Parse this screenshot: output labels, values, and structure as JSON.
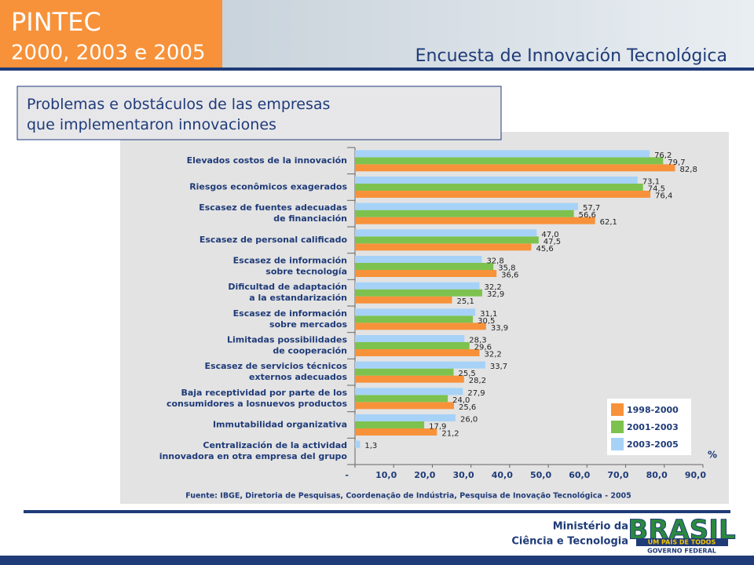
{
  "header": {
    "title": "PINTEC",
    "years": "2000, 2003 e 2005",
    "subtitle": "Encuesta de Innovación Tecnológica"
  },
  "footer": {
    "ministry_line1": "Ministério da",
    "ministry_line2": "Ciência e Tecnologia",
    "logo": "BRASIL",
    "logo_tagline": "UM PAÍS DE TODOS",
    "logo_gov": "GOVERNO FEDERAL"
  },
  "chart_data": {
    "type": "bar",
    "orientation": "horizontal",
    "title": "Problemas e obstáculos de las empresas que implementaron innovaciones",
    "source": "Fuente: IBGE, Diretoria de Pesquisas, Coordenação de Indústria, Pesquisa de Inovação Tecnológica - 2005",
    "unit_label": "%",
    "categories": [
      "Elevados costos de la innovación",
      "Riesgos econômicos exagerados",
      "Escasez de fuentes adecuadas\nde financiación",
      "Escasez de personal calificado",
      "Escasez de información\nsobre tecnología",
      "Dificultad de adaptación\na la estandarización",
      "Escasez de información\nsobre mercados",
      "Limitadas possibilidades\nde cooperación",
      "Escasez de servicios técnicos\nexternos adecuados",
      "Baja receptividad por parte de los\nconsumidores a losnuevos productos",
      "Immutabilidad organizativa",
      "Centralización de la actividad\ninnovadora en otra empresa del grupo"
    ],
    "series": [
      {
        "name": "1998-2000",
        "color": "#f7923a",
        "values": [
          82.8,
          76.4,
          62.1,
          45.6,
          36.6,
          25.1,
          33.9,
          32.2,
          28.2,
          25.6,
          21.2,
          null
        ],
        "value_labels": [
          "82,8",
          "76,4",
          "62,1",
          "45,6",
          "36,6",
          "25,1",
          "33,9",
          "32,2",
          "28,2",
          "25,6",
          "21,2",
          null
        ]
      },
      {
        "name": "2001-2003",
        "color": "#7dc24e",
        "values": [
          79.7,
          74.5,
          56.6,
          47.5,
          35.8,
          32.9,
          30.5,
          29.6,
          25.5,
          24.0,
          17.9,
          null
        ],
        "value_labels": [
          "79,7",
          "74,5",
          "56,6",
          "47,5",
          "35,8",
          "32,9",
          "30,5",
          "29,6",
          "25,5",
          "24,0",
          "17,9",
          null
        ]
      },
      {
        "name": "2003-2005",
        "color": "#a6d2f7",
        "values": [
          76.2,
          73.1,
          57.7,
          47.0,
          32.8,
          32.2,
          31.1,
          28.3,
          33.7,
          27.9,
          26.0,
          1.3
        ],
        "value_labels": [
          "76,2",
          "73,1",
          "57,7",
          "47,0",
          "32,8",
          "32,2",
          "31,1",
          "28,3",
          "33,7",
          "27,9",
          "26,0",
          "1,3"
        ]
      }
    ],
    "xlim": [
      0,
      90
    ],
    "xticks": [
      {
        "value": 0,
        "label": "-"
      },
      {
        "value": 10,
        "label": "10,0"
      },
      {
        "value": 20,
        "label": "20,0"
      },
      {
        "value": 30,
        "label": "30,0"
      },
      {
        "value": 40,
        "label": "40,0"
      },
      {
        "value": 50,
        "label": "50,0"
      },
      {
        "value": 60,
        "label": "60,0"
      },
      {
        "value": 70,
        "label": "70,0"
      },
      {
        "value": 80,
        "label": "80,0"
      },
      {
        "value": 90,
        "label": "90,0"
      }
    ],
    "legend": "lower right"
  }
}
